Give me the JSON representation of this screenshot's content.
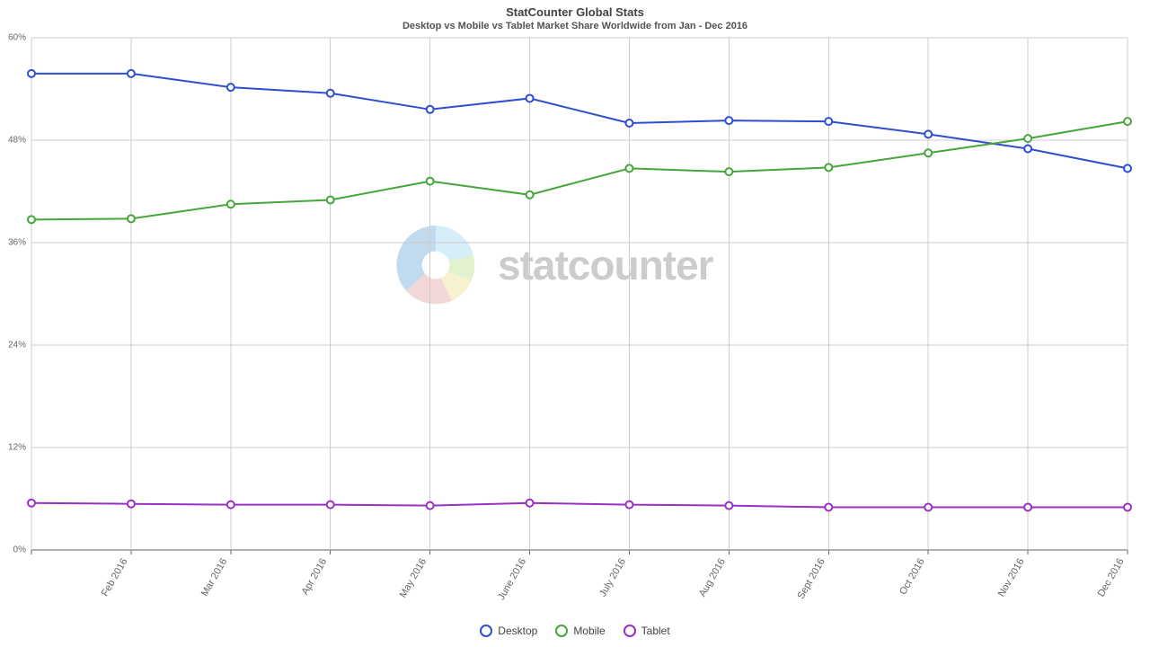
{
  "title": "StatCounter Global Stats",
  "subtitle": "Desktop vs Mobile vs Tablet Market Share Worldwide from Jan - Dec 2016",
  "watermark_text": "statcounter",
  "chart": {
    "type": "line",
    "background_color": "#ffffff",
    "grid_color": "#cccccc",
    "axis_color": "#666666",
    "label_color": "#666666",
    "ylim": [
      0,
      60
    ],
    "ytick_step": 12,
    "y_ticks": [
      0,
      12,
      24,
      36,
      48,
      60
    ],
    "y_tick_labels": [
      "0%",
      "12%",
      "24%",
      "36%",
      "48%",
      "60%"
    ],
    "label_fontsize": 10,
    "title_fontsize": 13,
    "subtitle_fontsize": 11,
    "legend_fontsize": 12,
    "marker_radius": 4,
    "line_width": 2,
    "x_label_rotation": -60,
    "x_labels": [
      "",
      "Feb 2016",
      "Mar 2016",
      "Apr 2016",
      "May 2016",
      "June 2016",
      "July 2016",
      "Aug 2016",
      "Sept 2016",
      "Oct 2016",
      "Nov 2016",
      "Dec 2016"
    ],
    "series": [
      {
        "name": "Desktop",
        "color": "#2d4ed1",
        "values": [
          55.8,
          55.8,
          54.2,
          53.5,
          51.6,
          52.9,
          50.0,
          50.3,
          50.2,
          48.7,
          47.0,
          44.7
        ]
      },
      {
        "name": "Mobile",
        "color": "#45a63a",
        "values": [
          38.7,
          38.8,
          40.5,
          41.0,
          43.2,
          41.6,
          44.7,
          44.3,
          44.8,
          46.5,
          48.2,
          50.2
        ]
      },
      {
        "name": "Tablet",
        "color": "#9a2fc6",
        "values": [
          5.5,
          5.4,
          5.3,
          5.3,
          5.2,
          5.5,
          5.3,
          5.2,
          5.0,
          5.0,
          5.0,
          5.0
        ]
      }
    ]
  },
  "watermark_colors": {
    "top": "#b6e0f7",
    "right_top": "#cce8a8",
    "right_mid": "#f0e8a8",
    "bottom": "#e8b8b8",
    "left": "#8fbce0",
    "center": "#ffffff"
  }
}
